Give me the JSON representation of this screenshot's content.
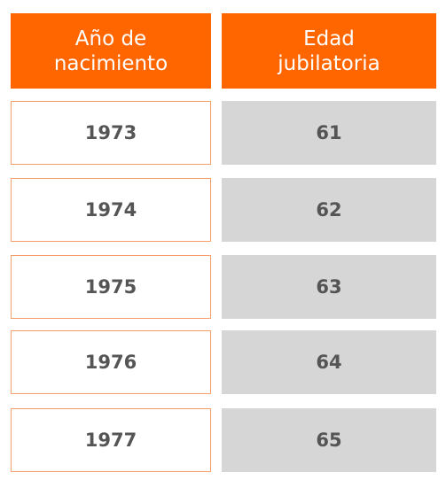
{
  "headers": {
    "birth_year_line1": "Año de",
    "birth_year_line2": "nacimiento",
    "retirement_age_line1": "Edad",
    "retirement_age_line2": "jubilatoria"
  },
  "rows": [
    {
      "year": "1973",
      "age": "61"
    },
    {
      "year": "1974",
      "age": "62"
    },
    {
      "year": "1975",
      "age": "63"
    },
    {
      "year": "1976",
      "age": "64"
    },
    {
      "year": "1977",
      "age": "65"
    }
  ],
  "colors": {
    "header_bg": "#ff6600",
    "header_text": "#ffffff",
    "left_border": "#f5a06a",
    "right_bg": "#d6d6d6",
    "cell_text": "#555555"
  }
}
